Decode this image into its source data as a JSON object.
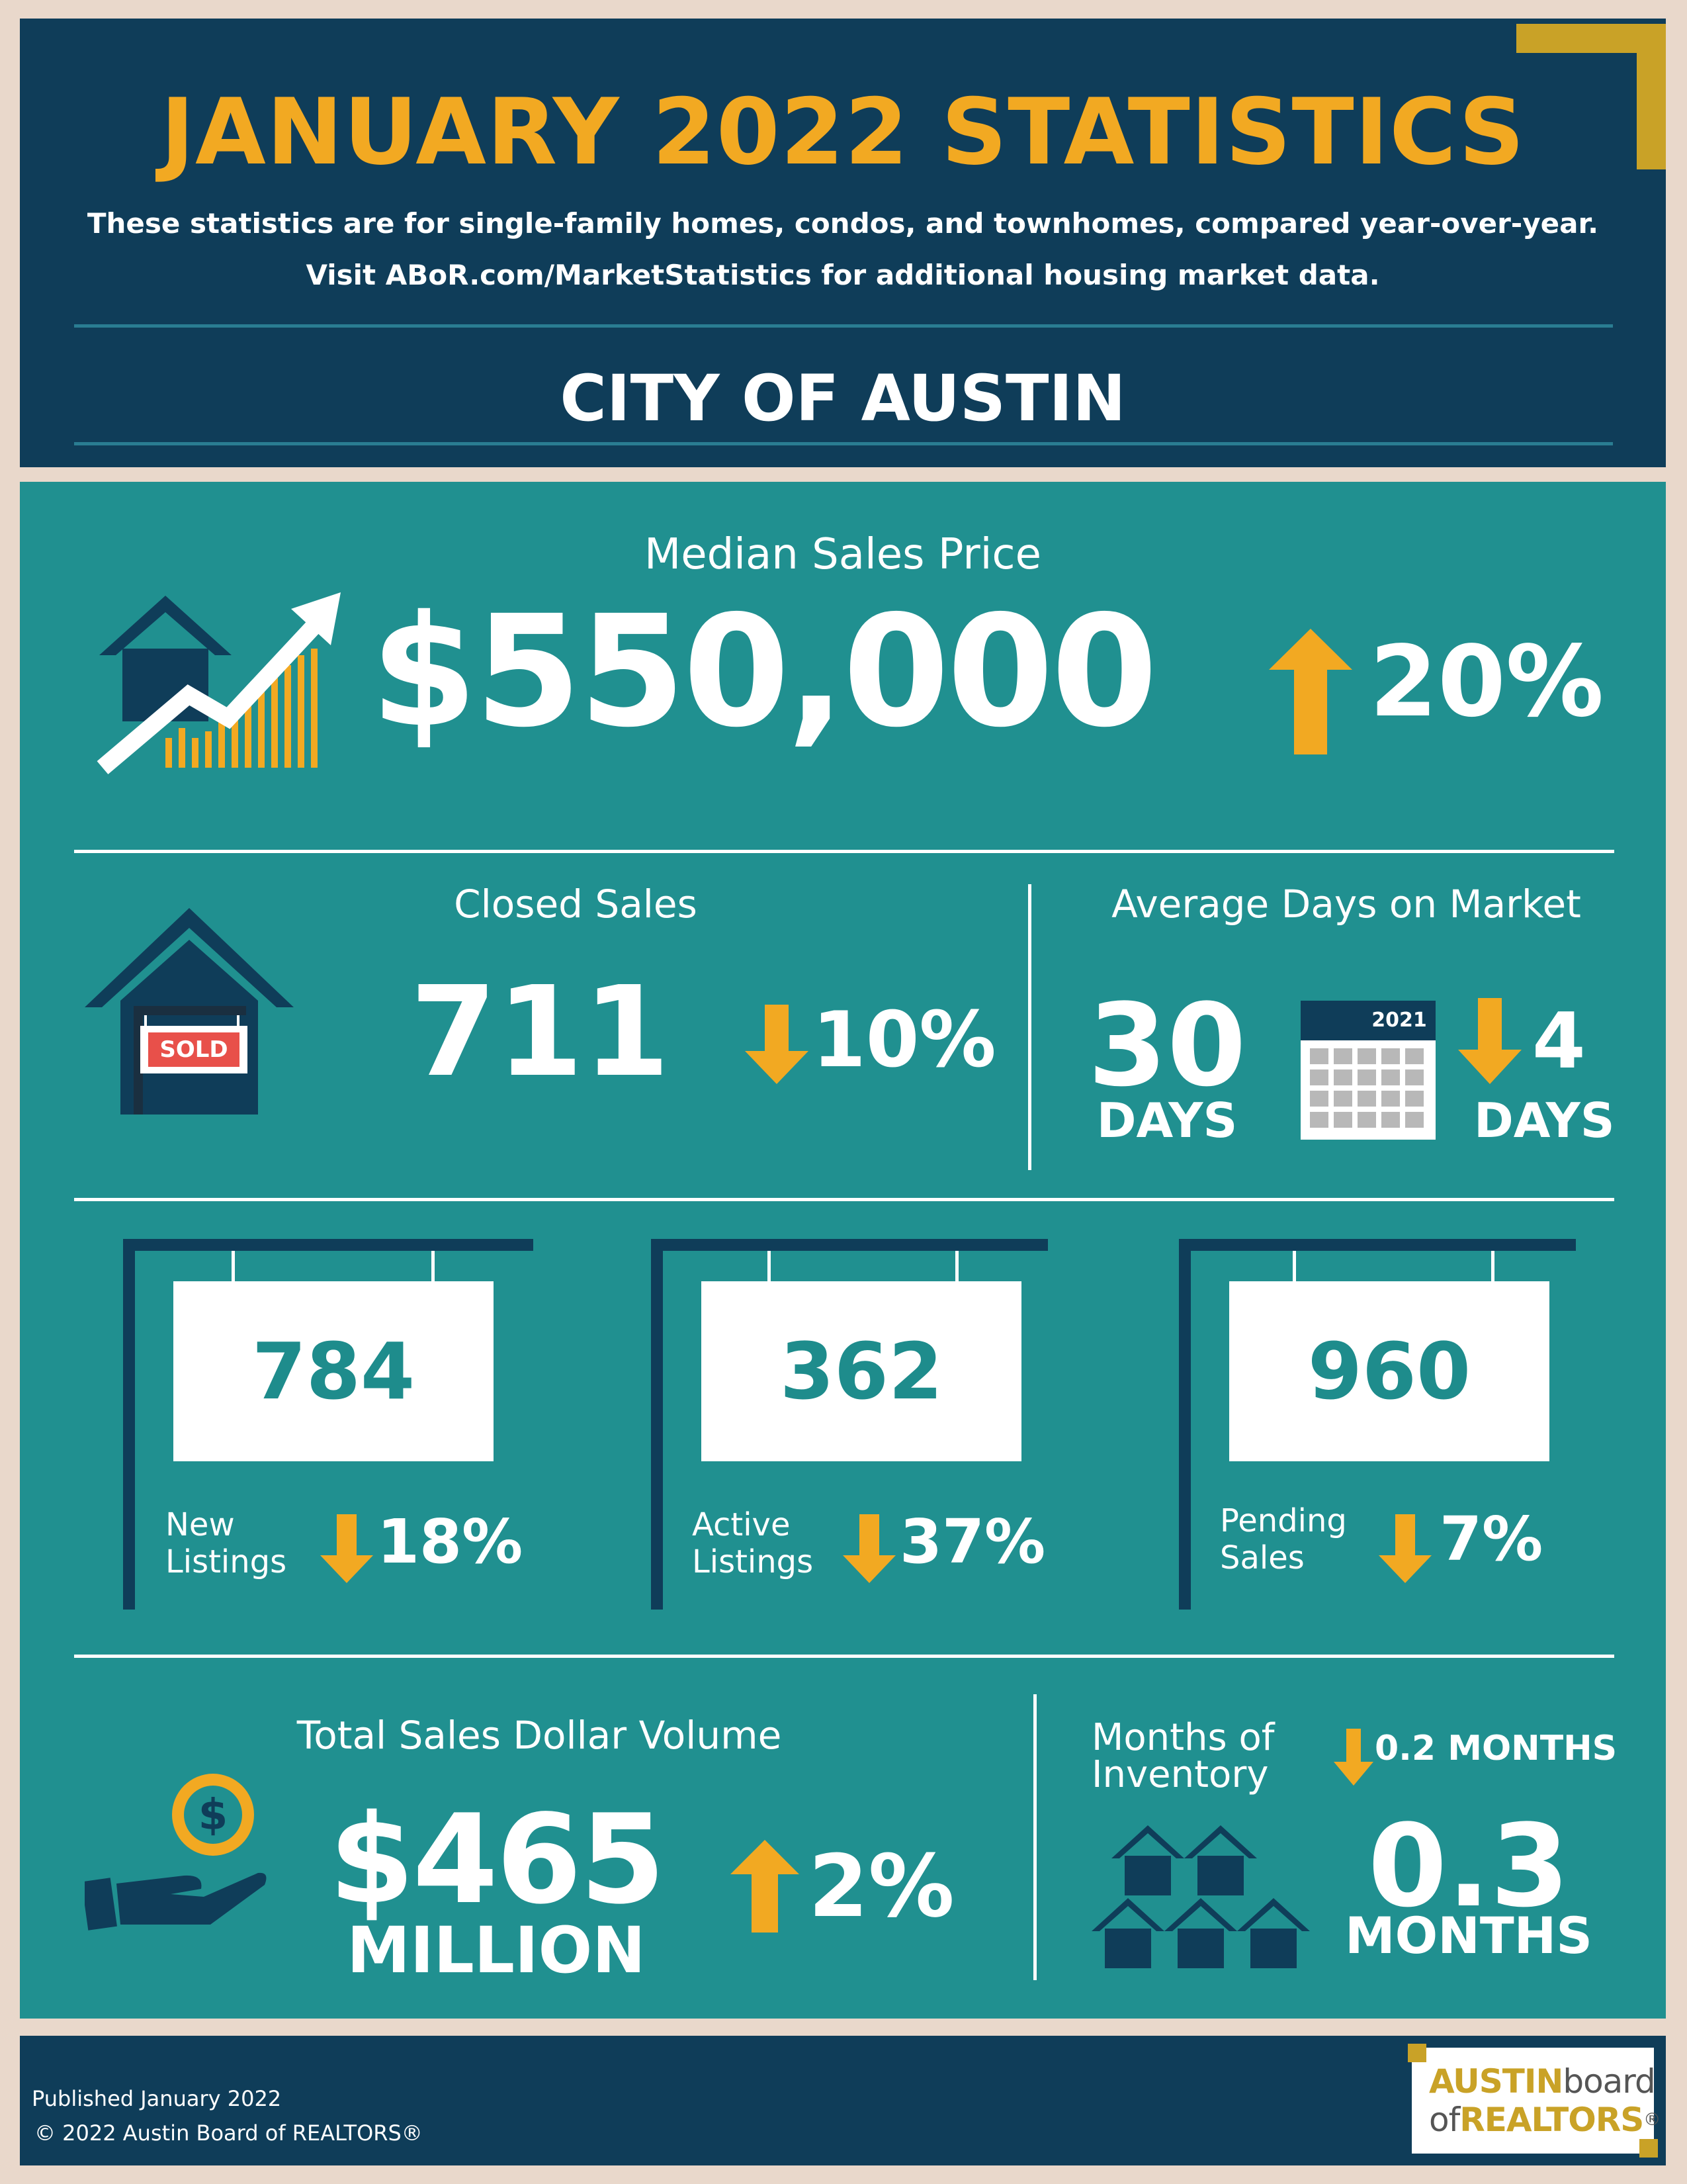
{
  "header": {
    "title": "JANUARY 2022 STATISTICS",
    "subtitle_line1": "These statistics are for single-family homes, condos, and townhomes, compared year-over-year.",
    "subtitle_line2": "Visit ABoR.com/MarketStatistics for additional housing market data.",
    "region": "CITY OF AUSTIN"
  },
  "median_sales_price": {
    "label": "Median Sales Price",
    "value": "$550,000",
    "change": "20%",
    "direction": "up"
  },
  "closed_sales": {
    "label": "Closed Sales",
    "value": "711",
    "change": "10%",
    "direction": "down",
    "sign_text": "SOLD"
  },
  "days_on_market": {
    "label": "Average Days on Market",
    "value": "30",
    "value_unit": "DAYS",
    "calendar_year": "2021",
    "change": "4",
    "change_unit": "DAYS",
    "direction": "down"
  },
  "listings": [
    {
      "value": "784",
      "label_line1": "New",
      "label_line2": "Listings",
      "change": "18%",
      "direction": "down"
    },
    {
      "value": "362",
      "label_line1": "Active",
      "label_line2": "Listings",
      "change": "37%",
      "direction": "down"
    },
    {
      "value": "960",
      "label_line1": "Pending",
      "label_line2": "Sales",
      "change": "7%",
      "direction": "down"
    }
  ],
  "total_sales_volume": {
    "label": "Total Sales Dollar Volume",
    "value": "$465",
    "value_unit": "MILLION",
    "change": "2%",
    "direction": "up"
  },
  "months_inventory": {
    "label_line1": "Months of",
    "label_line2": "Inventory",
    "change": "0.2 MONTHS",
    "direction": "down",
    "value": "0.3",
    "value_unit": "MONTHS"
  },
  "footer": {
    "published": "Published January 2022",
    "copyright": "© 2022 Austin Board of REALTORS®",
    "logo_line1_a": "AUSTIN",
    "logo_line1_b": "board",
    "logo_line2_a": "of",
    "logo_line2_b": "REALTORS",
    "logo_mark": "®"
  },
  "colors": {
    "navy": "#0f3d59",
    "teal": "#209090",
    "gold": "#f2a922",
    "background": "#e9d8cb"
  }
}
